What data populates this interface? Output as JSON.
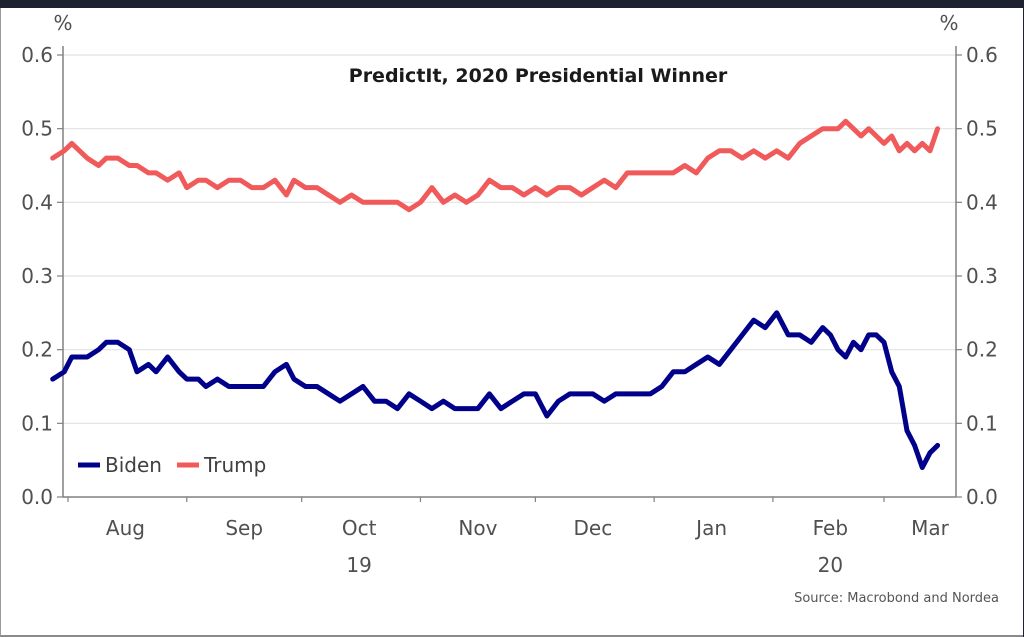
{
  "chart_data": {
    "type": "line",
    "title": "PredictIt, 2020 Presidential Winner",
    "source": "Source: Macrobond and Nordea",
    "left_axis_unit": "%",
    "right_axis_unit": "%",
    "ylim": [
      0.0,
      0.6
    ],
    "yticks": [
      "0.0",
      "0.1",
      "0.2",
      "0.3",
      "0.4",
      "0.5",
      "0.6"
    ],
    "ytick_values": [
      0.0,
      0.1,
      0.2,
      0.3,
      0.4,
      0.5,
      0.6
    ],
    "x_start": "2019-07-28",
    "x_end": "2020-03-15",
    "month_ticks": [
      "2019-08-01",
      "2019-09-01",
      "2019-10-01",
      "2019-11-01",
      "2019-12-01",
      "2020-01-01",
      "2020-02-01",
      "2020-03-01"
    ],
    "xtick_labels": [
      {
        "label": "Aug",
        "date": "2019-08-16"
      },
      {
        "label": "Sep",
        "date": "2019-09-16"
      },
      {
        "label": "Oct",
        "date": "2019-10-16"
      },
      {
        "label": "Nov",
        "date": "2019-11-16"
      },
      {
        "label": "Dec",
        "date": "2019-12-16"
      },
      {
        "label": "Jan",
        "date": "2020-01-16"
      },
      {
        "label": "Feb",
        "date": "2020-02-16"
      },
      {
        "label": "Mar",
        "date": "2020-03-13"
      }
    ],
    "year_labels": [
      {
        "label": "19",
        "date": "2019-10-16"
      },
      {
        "label": "20",
        "date": "2020-02-16"
      }
    ],
    "grid": true,
    "legend": "bottom-left",
    "series": [
      {
        "name": "Biden",
        "color": "#00008b",
        "day_offsets": [
          0,
          3,
          5,
          7,
          9,
          12,
          14,
          17,
          20,
          22,
          25,
          27,
          30,
          33,
          35,
          38,
          40,
          43,
          46,
          49,
          52,
          55,
          58,
          61,
          63,
          66,
          69,
          72,
          75,
          78,
          81,
          84,
          87,
          90,
          93,
          96,
          99,
          102,
          105,
          108,
          111,
          114,
          117,
          120,
          123,
          126,
          129,
          132,
          135,
          138,
          141,
          144,
          147,
          150,
          153,
          156,
          159,
          162,
          165,
          168,
          171,
          174,
          177,
          180,
          183,
          186,
          189,
          192,
          195,
          198,
          201,
          203,
          205,
          207,
          209,
          211,
          213,
          215,
          217,
          219,
          221,
          223,
          225,
          227,
          229,
          231
        ],
        "values": [
          0.16,
          0.17,
          0.19,
          0.19,
          0.19,
          0.2,
          0.21,
          0.21,
          0.2,
          0.17,
          0.18,
          0.17,
          0.19,
          0.17,
          0.16,
          0.16,
          0.15,
          0.16,
          0.15,
          0.15,
          0.15,
          0.15,
          0.17,
          0.18,
          0.16,
          0.15,
          0.15,
          0.14,
          0.13,
          0.14,
          0.15,
          0.13,
          0.13,
          0.12,
          0.14,
          0.13,
          0.12,
          0.13,
          0.12,
          0.12,
          0.12,
          0.14,
          0.12,
          0.13,
          0.14,
          0.14,
          0.11,
          0.13,
          0.14,
          0.14,
          0.14,
          0.13,
          0.14,
          0.14,
          0.14,
          0.14,
          0.15,
          0.17,
          0.17,
          0.18,
          0.19,
          0.18,
          0.2,
          0.22,
          0.24,
          0.23,
          0.25,
          0.22,
          0.22,
          0.21,
          0.23,
          0.22,
          0.2,
          0.19,
          0.21,
          0.2,
          0.22,
          0.22,
          0.21,
          0.17,
          0.15,
          0.09,
          0.07,
          0.04,
          0.06,
          0.07
        ]
      },
      {
        "name": "Trump",
        "color": "#f05a5a",
        "day_offsets": [
          0,
          3,
          5,
          7,
          9,
          12,
          14,
          17,
          20,
          22,
          25,
          27,
          30,
          33,
          35,
          38,
          40,
          43,
          46,
          49,
          52,
          55,
          58,
          61,
          63,
          66,
          69,
          72,
          75,
          78,
          81,
          84,
          87,
          90,
          93,
          96,
          99,
          102,
          105,
          108,
          111,
          114,
          117,
          120,
          123,
          126,
          129,
          132,
          135,
          138,
          141,
          144,
          147,
          150,
          153,
          156,
          159,
          162,
          165,
          168,
          171,
          174,
          177,
          180,
          183,
          186,
          189,
          192,
          195,
          198,
          201,
          203,
          205,
          207,
          209,
          211,
          213,
          215,
          217,
          219,
          221,
          223,
          225,
          227,
          229,
          231
        ],
        "values": [
          0.46,
          0.47,
          0.48,
          0.47,
          0.46,
          0.45,
          0.46,
          0.46,
          0.45,
          0.45,
          0.44,
          0.44,
          0.43,
          0.44,
          0.42,
          0.43,
          0.43,
          0.42,
          0.43,
          0.43,
          0.42,
          0.42,
          0.43,
          0.41,
          0.43,
          0.42,
          0.42,
          0.41,
          0.4,
          0.41,
          0.4,
          0.4,
          0.4,
          0.4,
          0.39,
          0.4,
          0.42,
          0.4,
          0.41,
          0.4,
          0.41,
          0.43,
          0.42,
          0.42,
          0.41,
          0.42,
          0.41,
          0.42,
          0.42,
          0.41,
          0.42,
          0.43,
          0.42,
          0.44,
          0.44,
          0.44,
          0.44,
          0.44,
          0.45,
          0.44,
          0.46,
          0.47,
          0.47,
          0.46,
          0.47,
          0.46,
          0.47,
          0.46,
          0.48,
          0.49,
          0.5,
          0.5,
          0.5,
          0.51,
          0.5,
          0.49,
          0.5,
          0.49,
          0.48,
          0.49,
          0.47,
          0.48,
          0.47,
          0.48,
          0.47,
          0.5
        ]
      }
    ]
  }
}
